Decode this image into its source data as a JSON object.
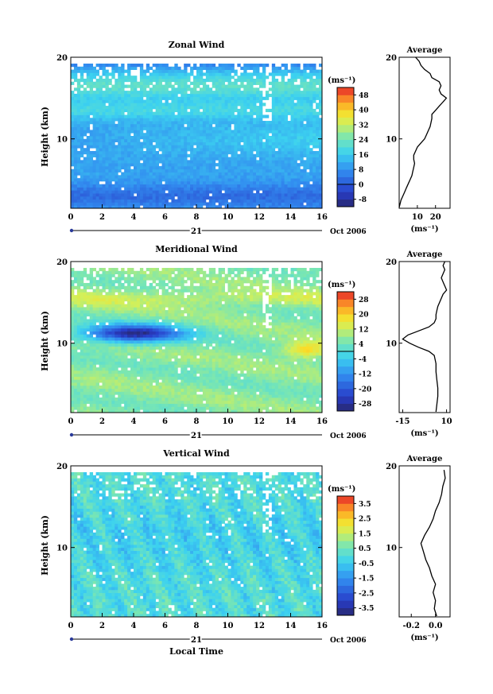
{
  "footer": {
    "xlabel": "Local Time"
  },
  "chart_data": [
    {
      "type": "heatmap",
      "title": "Zonal Wind",
      "xlabel": "",
      "ylabel": "Height (km)",
      "x_ticks": [
        "0",
        "2",
        "4",
        "6",
        "8",
        "10",
        "12",
        "14",
        "16"
      ],
      "xlim": [
        0,
        16
      ],
      "y_ticks": [
        "10",
        "20"
      ],
      "ylim": [
        1.5,
        20
      ],
      "date_bar": {
        "day": "21",
        "label": "Oct 2006"
      },
      "colorbar": {
        "unit": "(ms⁻¹)",
        "ticks": [
          "-8",
          "0",
          "8",
          "16",
          "24",
          "32",
          "40",
          "48"
        ],
        "range": [
          -12,
          52
        ]
      },
      "profile": {
        "title": "Average",
        "xlabel": "(ms⁻¹)",
        "x_ticks": [
          "10",
          "20"
        ],
        "xlim": [
          0,
          28
        ],
        "points": [
          [
            0,
            1.6
          ],
          [
            1,
            2.5
          ],
          [
            2,
            3.0
          ],
          [
            3,
            3.5
          ],
          [
            4,
            4.0
          ],
          [
            5,
            4.5
          ],
          [
            6,
            5.0
          ],
          [
            7,
            5.5
          ],
          [
            7.5,
            6.0
          ],
          [
            8,
            6.5
          ],
          [
            8.5,
            7.0
          ],
          [
            8,
            7.5
          ],
          [
            8,
            8.0
          ],
          [
            9,
            8.5
          ],
          [
            10,
            9.0
          ],
          [
            12,
            9.5
          ],
          [
            14,
            10.0
          ],
          [
            15,
            10.5
          ],
          [
            16,
            11.0
          ],
          [
            17,
            11.5
          ],
          [
            17.5,
            12.0
          ],
          [
            18,
            12.5
          ],
          [
            18,
            13.0
          ],
          [
            20,
            13.5
          ],
          [
            22,
            14.0
          ],
          [
            24,
            14.5
          ],
          [
            26,
            15.0
          ],
          [
            23,
            15.5
          ],
          [
            22,
            16.0
          ],
          [
            23,
            16.5
          ],
          [
            22,
            17.0
          ],
          [
            18,
            17.5
          ],
          [
            17,
            18.0
          ],
          [
            14,
            18.5
          ],
          [
            12,
            19.0
          ],
          [
            11,
            19.5
          ],
          [
            9,
            20.0
          ]
        ]
      }
    },
    {
      "type": "heatmap",
      "title": "Meridional Wind",
      "xlabel": "",
      "ylabel": "Height (km)",
      "x_ticks": [
        "0",
        "2",
        "4",
        "6",
        "8",
        "10",
        "12",
        "14",
        "16"
      ],
      "xlim": [
        0,
        16
      ],
      "y_ticks": [
        "10",
        "20"
      ],
      "ylim": [
        1.5,
        20
      ],
      "date_bar": {
        "day": "21",
        "label": "Oct 2006"
      },
      "colorbar": {
        "unit": "(ms⁻¹)",
        "ticks": [
          "-28",
          "-20",
          "-12",
          "-4",
          "4",
          "12",
          "20",
          "28"
        ],
        "range": [
          -32,
          32
        ]
      },
      "profile": {
        "title": "Average",
        "xlabel": "(ms⁻¹)",
        "x_ticks": [
          "-15",
          "10"
        ],
        "xlim": [
          -17,
          12
        ],
        "points": [
          [
            4,
            1.6
          ],
          [
            4.5,
            2.5
          ],
          [
            5,
            3.5
          ],
          [
            5,
            4.5
          ],
          [
            4.5,
            5.5
          ],
          [
            4,
            6.5
          ],
          [
            4,
            7.5
          ],
          [
            3,
            8.5
          ],
          [
            0,
            9.0
          ],
          [
            -6,
            9.5
          ],
          [
            -11,
            10.0
          ],
          [
            -15,
            10.5
          ],
          [
            -12,
            11.0
          ],
          [
            -6,
            11.5
          ],
          [
            0,
            12.0
          ],
          [
            3,
            12.5
          ],
          [
            4,
            13.0
          ],
          [
            4,
            13.5
          ],
          [
            4.5,
            14.0
          ],
          [
            5,
            14.5
          ],
          [
            6,
            15.0
          ],
          [
            7,
            15.5
          ],
          [
            8,
            16.0
          ],
          [
            10,
            16.5
          ],
          [
            9,
            17.0
          ],
          [
            8,
            17.5
          ],
          [
            7,
            18.0
          ],
          [
            8,
            18.5
          ],
          [
            9,
            19.0
          ],
          [
            8,
            19.5
          ],
          [
            9,
            20.0
          ]
        ]
      }
    },
    {
      "type": "heatmap",
      "title": "Vertical Wind",
      "xlabel": "Local Time",
      "ylabel": "Height (km)",
      "x_ticks": [
        "0",
        "2",
        "4",
        "6",
        "8",
        "10",
        "12",
        "14",
        "16"
      ],
      "xlim": [
        0,
        16
      ],
      "y_ticks": [
        "10",
        "20"
      ],
      "ylim": [
        1.5,
        20
      ],
      "date_bar": {
        "day": "21",
        "label": "Oct 2006"
      },
      "colorbar": {
        "unit": "(ms⁻¹)",
        "ticks": [
          "-3.5",
          "-2.5",
          "-1.5",
          "-0.5",
          "0.5",
          "1.5",
          "2.5",
          "3.5"
        ],
        "range": [
          -4,
          4
        ]
      },
      "profile": {
        "title": "Average",
        "xlabel": "(ms⁻¹)",
        "x_ticks": [
          "-0.2",
          "0.0"
        ],
        "xlim": [
          -0.3,
          0.12
        ],
        "points": [
          [
            0.01,
            1.6
          ],
          [
            -0.01,
            2.5
          ],
          [
            0.0,
            3.5
          ],
          [
            -0.02,
            4.5
          ],
          [
            0.0,
            5.5
          ],
          [
            -0.03,
            6.5
          ],
          [
            -0.05,
            7.5
          ],
          [
            -0.08,
            8.5
          ],
          [
            -0.1,
            9.5
          ],
          [
            -0.12,
            10.5
          ],
          [
            -0.09,
            11.5
          ],
          [
            -0.05,
            12.5
          ],
          [
            -0.02,
            13.5
          ],
          [
            0.0,
            14.5
          ],
          [
            0.03,
            15.5
          ],
          [
            0.05,
            16.5
          ],
          [
            0.06,
            17.5
          ],
          [
            0.08,
            18.5
          ],
          [
            0.07,
            19.5
          ]
        ]
      }
    }
  ]
}
